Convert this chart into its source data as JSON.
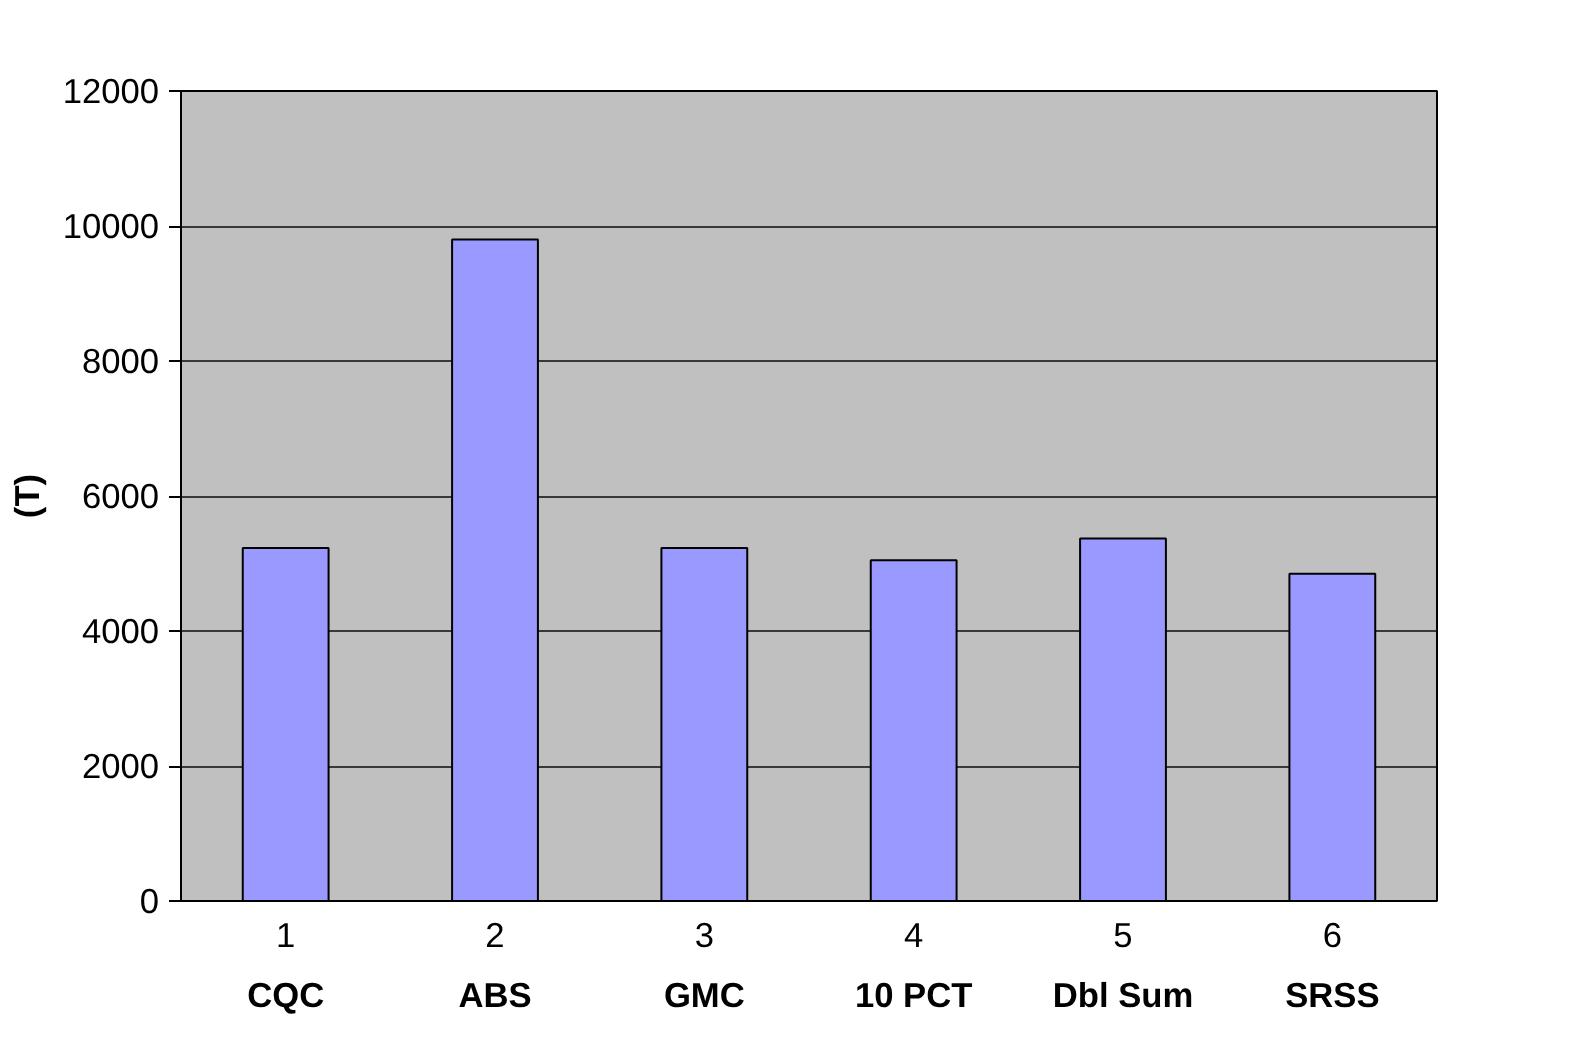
{
  "chart_data": {
    "type": "bar",
    "ylabel": "(T)",
    "categories": [
      "1\nCQC",
      "2\nABS",
      "3\nGMC",
      "4\n10 PCT",
      "5\nDbl Sum",
      "6\nSRSS"
    ],
    "values": [
      5230,
      9800,
      5230,
      5050,
      5370,
      4850
    ],
    "color": "#9999ff",
    "ylim": [
      0,
      12000
    ],
    "yticks": [
      0,
      2000,
      4000,
      6000,
      8000,
      10000,
      12000
    ],
    "grid": "y"
  }
}
